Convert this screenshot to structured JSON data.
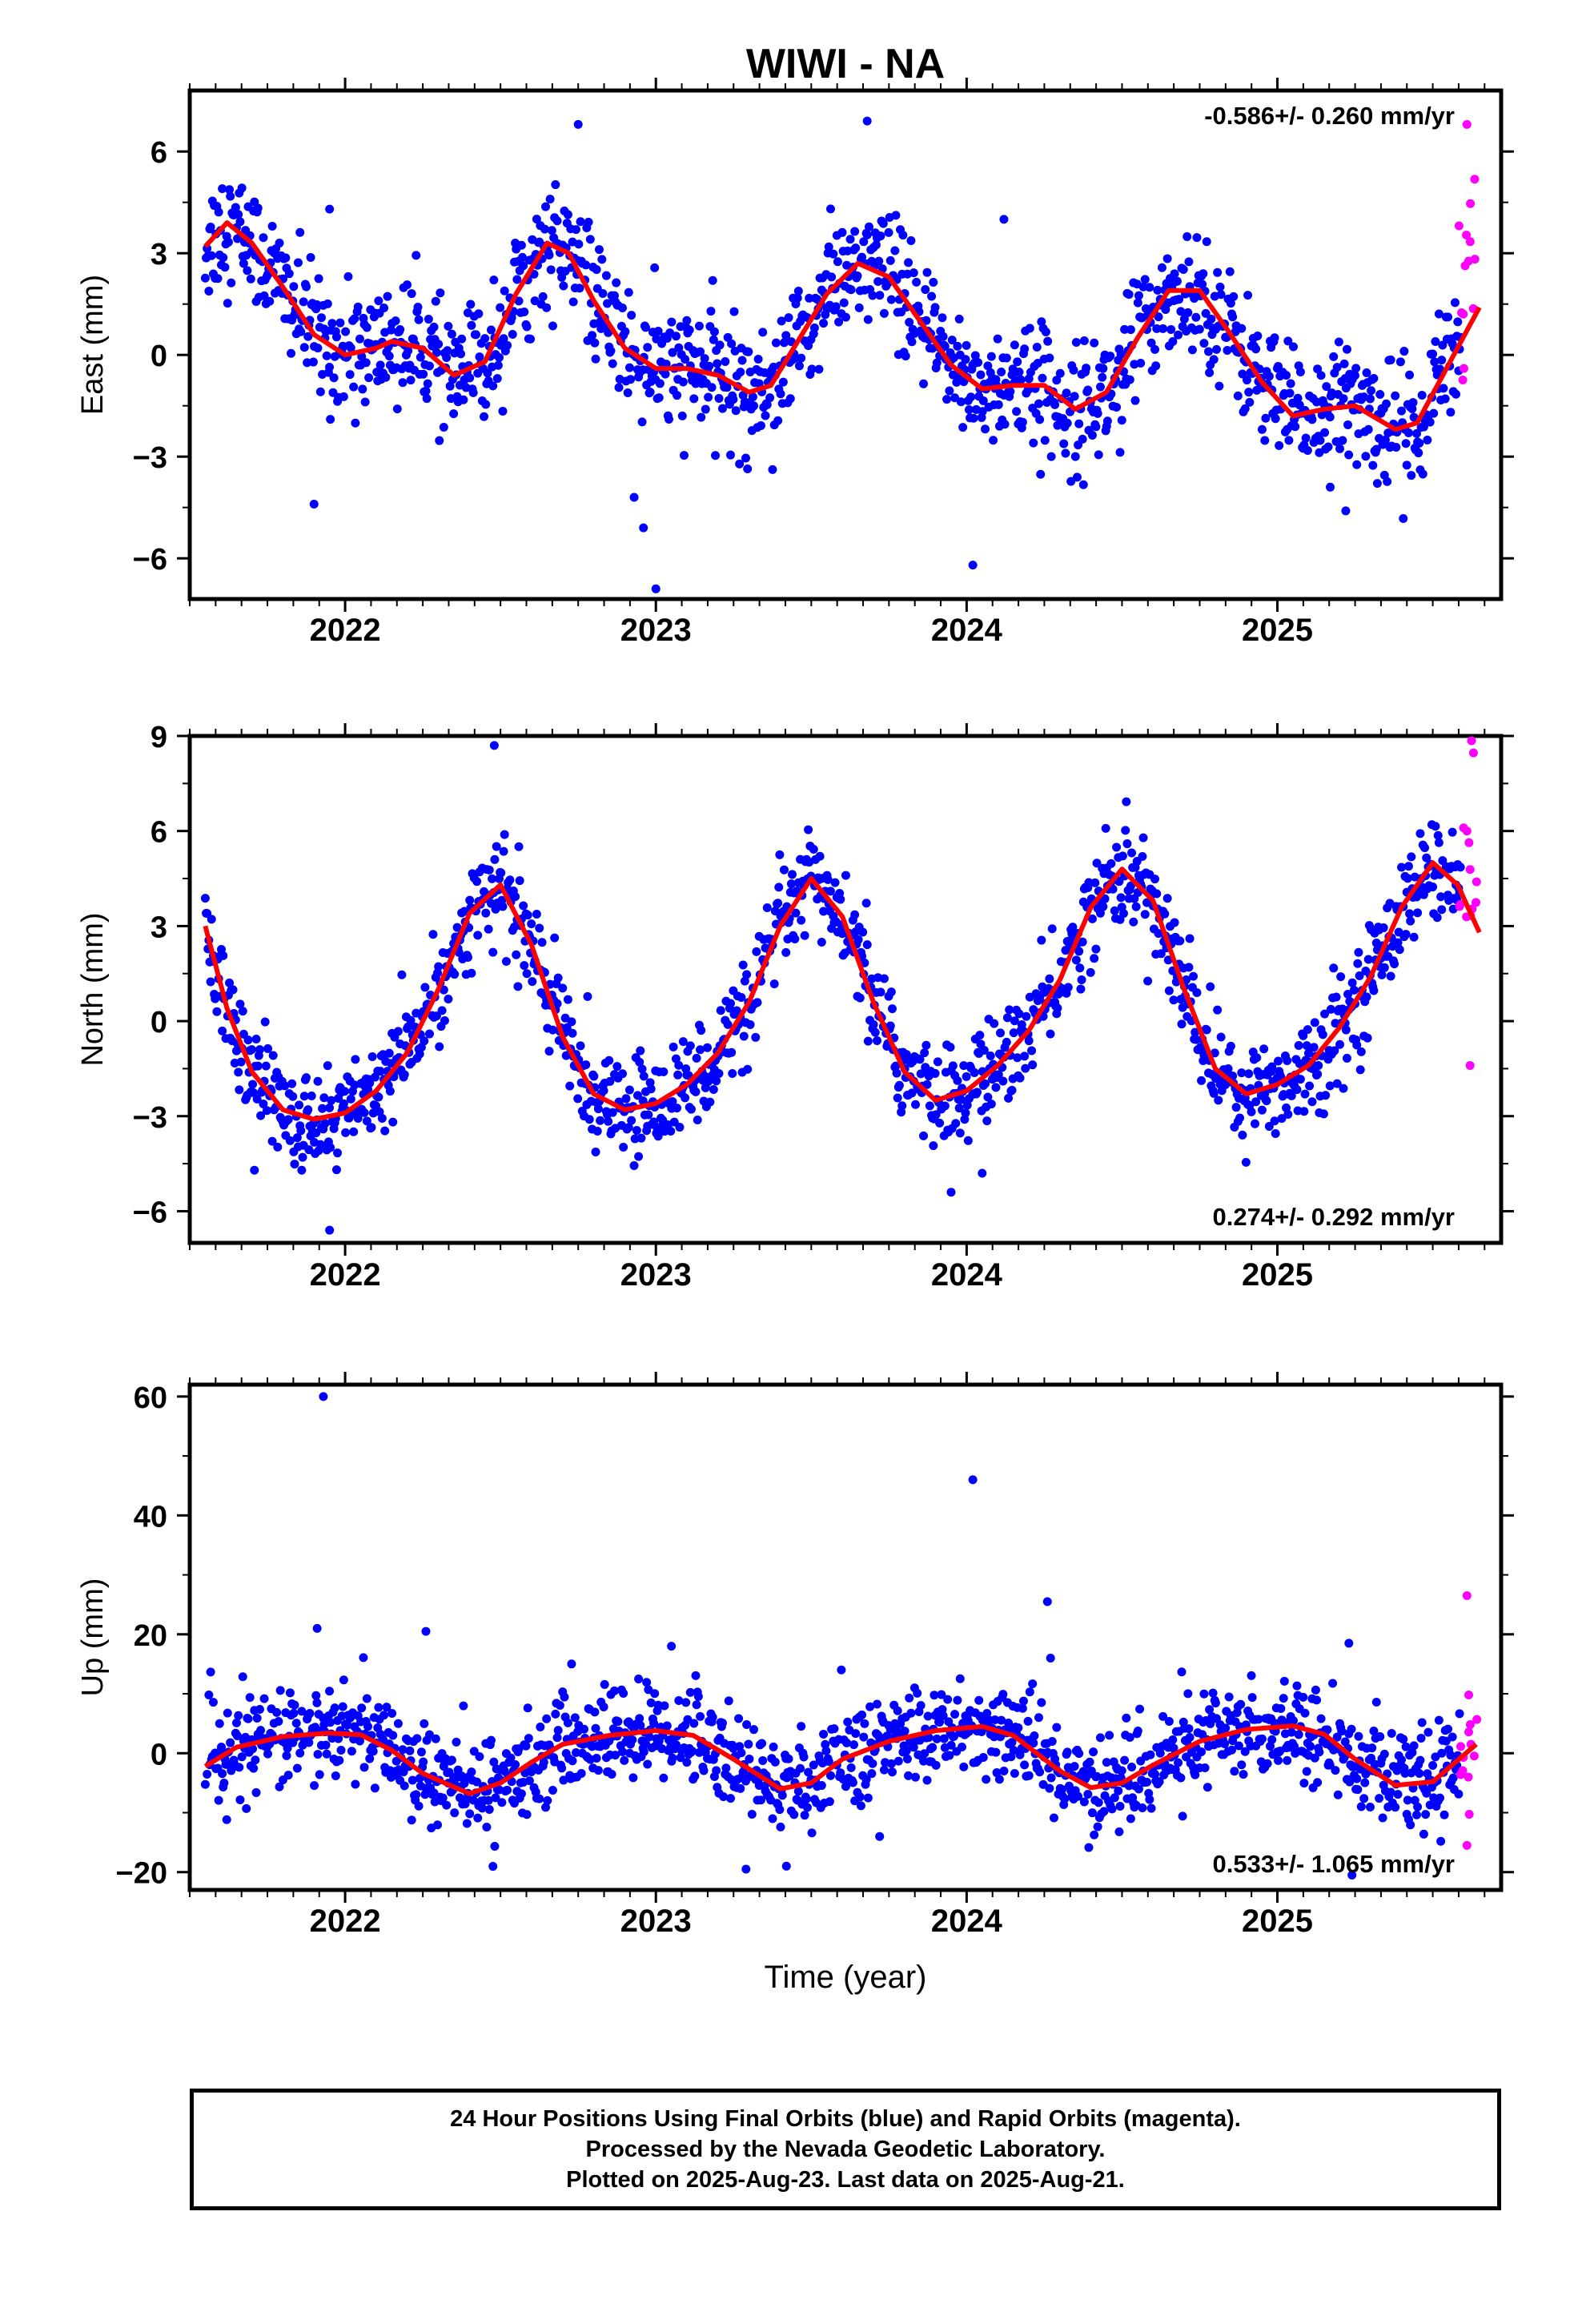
{
  "title": "WIWI - NA",
  "xlabel": "Time (year)",
  "footer": {
    "line1": "24 Hour Positions Using Final Orbits (blue) and Rapid Orbits (magenta).",
    "line2": "Processed by the Nevada Geodetic Laboratory.",
    "line3": "Plotted on 2025-Aug-23. Last data on 2025-Aug-21."
  },
  "colors": {
    "final": "#0000ff",
    "rapid": "#ff00ff",
    "model": "#ff0000"
  },
  "chart_data": [
    {
      "type": "scatter",
      "ylabel": "East (mm)",
      "rate_label": "-0.586+/- 0.260 mm/yr",
      "xlim": [
        2021.5,
        2025.72
      ],
      "ylim": [
        -7.2,
        7.8
      ],
      "yticks": [
        -6,
        -3,
        0,
        3,
        6
      ],
      "ytick_labels": [
        "−6",
        "−3",
        "0",
        "3",
        "6"
      ],
      "xticks": [
        2022,
        2023,
        2024,
        2025
      ],
      "rate": -0.586,
      "model": {
        "x": [
          2021.55,
          2021.62,
          2021.7,
          2021.8,
          2021.9,
          2022.0,
          2022.1,
          2022.15,
          2022.25,
          2022.35,
          2022.45,
          2022.55,
          2022.65,
          2022.72,
          2022.8,
          2022.9,
          2023.0,
          2023.1,
          2023.2,
          2023.3,
          2023.37,
          2023.45,
          2023.55,
          2023.65,
          2023.75,
          2023.85,
          2023.95,
          2024.05,
          2024.15,
          2024.25,
          2024.35,
          2024.45,
          2024.55,
          2024.65,
          2024.75,
          2024.85,
          2024.95,
          2025.05,
          2025.15,
          2025.25,
          2025.38,
          2025.45,
          2025.55,
          2025.65
        ],
        "y": [
          3.2,
          3.9,
          3.3,
          2.0,
          0.6,
          0.0,
          0.2,
          0.4,
          0.2,
          -0.6,
          -0.2,
          1.8,
          3.3,
          3.0,
          1.6,
          0.2,
          -0.4,
          -0.4,
          -0.6,
          -1.1,
          -0.9,
          0.3,
          1.8,
          2.7,
          2.3,
          1.0,
          -0.3,
          -1.0,
          -0.9,
          -0.9,
          -1.6,
          -1.1,
          0.5,
          1.9,
          1.9,
          0.6,
          -0.8,
          -1.8,
          -1.6,
          -1.5,
          -2.2,
          -2.0,
          -0.3,
          1.4
        ]
      },
      "final_range": [
        2021.55,
        2025.59
      ],
      "rapid_range": [
        2025.59,
        2025.64
      ],
      "outliers": [
        [
          2021.9,
          -4.4
        ],
        [
          2022.93,
          -4.2
        ],
        [
          2022.96,
          -5.1
        ],
        [
          2023.0,
          -6.9
        ],
        [
          2024.02,
          -6.2
        ],
        [
          2025.22,
          -4.6
        ],
        [
          2025.17,
          -3.9
        ],
        [
          2022.75,
          6.8
        ],
        [
          2023.68,
          6.9
        ],
        [
          2021.95,
          4.3
        ],
        [
          2024.12,
          4.0
        ],
        [
          2025.6,
          -0.4
        ],
        [
          2025.61,
          6.8
        ]
      ],
      "noise": 0.9,
      "rapid_spread": 1.7
    },
    {
      "type": "scatter",
      "ylabel": "North (mm)",
      "rate_label": "0.274+/- 0.292 mm/yr",
      "xlim": [
        2021.5,
        2025.72
      ],
      "ylim": [
        -7.0,
        9.0
      ],
      "yticks": [
        -6,
        -3,
        0,
        3,
        6,
        9
      ],
      "ytick_labels": [
        "−6",
        "−3",
        "0",
        "3",
        "6",
        "9"
      ],
      "xticks": [
        2022,
        2023,
        2024,
        2025
      ],
      "rate": 0.274,
      "model": {
        "x": [
          2021.55,
          2021.62,
          2021.7,
          2021.8,
          2021.9,
          2022.0,
          2022.1,
          2022.2,
          2022.3,
          2022.4,
          2022.5,
          2022.6,
          2022.7,
          2022.8,
          2022.9,
          2023.0,
          2023.1,
          2023.2,
          2023.3,
          2023.4,
          2023.5,
          2023.6,
          2023.7,
          2023.8,
          2023.9,
          2024.0,
          2024.1,
          2024.2,
          2024.3,
          2024.4,
          2024.5,
          2024.6,
          2024.7,
          2024.8,
          2024.9,
          2025.0,
          2025.1,
          2025.2,
          2025.3,
          2025.4,
          2025.5,
          2025.58,
          2025.65
        ],
        "y": [
          3.0,
          0.4,
          -1.6,
          -2.8,
          -3.1,
          -2.9,
          -2.2,
          -1.0,
          1.0,
          3.4,
          4.3,
          2.4,
          -0.5,
          -2.3,
          -2.8,
          -2.6,
          -2.0,
          -1.0,
          0.6,
          3.0,
          4.5,
          3.3,
          0.6,
          -1.6,
          -2.5,
          -2.2,
          -1.4,
          -0.3,
          1.3,
          3.6,
          4.8,
          3.8,
          1.0,
          -1.5,
          -2.3,
          -2.0,
          -1.4,
          -0.2,
          1.4,
          3.6,
          5.0,
          4.3,
          2.8
        ]
      },
      "final_range": [
        2021.55,
        2025.59
      ],
      "rapid_range": [
        2025.59,
        2025.64
      ],
      "outliers": [
        [
          2021.95,
          -6.6
        ],
        [
          2022.48,
          8.7
        ],
        [
          2023.95,
          -5.4
        ],
        [
          2024.05,
          -4.8
        ],
        [
          2025.62,
          -1.4
        ],
        [
          2025.61,
          6.0
        ]
      ],
      "noise": 0.8,
      "rapid_spread": 1.6
    },
    {
      "type": "scatter",
      "ylabel": "Up (mm)",
      "rate_label": "0.533+/- 1.065 mm/yr",
      "xlim": [
        2021.5,
        2025.72
      ],
      "ylim": [
        -23,
        62
      ],
      "yticks": [
        -20,
        0,
        20,
        40,
        60
      ],
      "ytick_labels": [
        "−20",
        "0",
        "20",
        "40",
        "60"
      ],
      "xticks": [
        2022,
        2023,
        2024,
        2025
      ],
      "rate": 0.533,
      "model": {
        "x": [
          2021.55,
          2021.65,
          2021.8,
          2021.95,
          2022.05,
          2022.15,
          2022.25,
          2022.4,
          2022.5,
          2022.6,
          2022.7,
          2022.85,
          2023.0,
          2023.12,
          2023.25,
          2023.4,
          2023.5,
          2023.6,
          2023.75,
          2023.9,
          2024.05,
          2024.15,
          2024.3,
          2024.4,
          2024.5,
          2024.6,
          2024.75,
          2024.9,
          2025.05,
          2025.15,
          2025.25,
          2025.38,
          2025.5,
          2025.64
        ],
        "y": [
          -2.2,
          1.0,
          2.8,
          3.4,
          3.1,
          0.5,
          -3.4,
          -6.8,
          -5.0,
          -1.5,
          1.5,
          3.0,
          3.8,
          3.0,
          -1.0,
          -6.0,
          -5.0,
          -1.0,
          2.0,
          3.8,
          4.5,
          3.0,
          -3.0,
          -5.8,
          -5.0,
          -2.0,
          2.0,
          4.0,
          4.6,
          3.2,
          -1.0,
          -5.4,
          -4.8,
          1.5
        ]
      },
      "final_range": [
        2021.55,
        2025.59
      ],
      "rapid_range": [
        2025.59,
        2025.64
      ],
      "outliers": [
        [
          2021.93,
          60.0
        ],
        [
          2024.02,
          46.0
        ],
        [
          2021.91,
          21.0
        ],
        [
          2022.26,
          20.5
        ],
        [
          2024.26,
          25.5
        ],
        [
          2024.27,
          16.0
        ],
        [
          2025.61,
          26.5
        ],
        [
          2025.61,
          -15.5
        ],
        [
          2023.29,
          -19.5
        ],
        [
          2023.42,
          -19.0
        ],
        [
          2025.24,
          -20.5
        ],
        [
          2023.72,
          -14.0
        ],
        [
          2025.23,
          18.5
        ],
        [
          2023.05,
          18.0
        ]
      ],
      "noise": 4.0,
      "rapid_spread": 6.0
    }
  ]
}
